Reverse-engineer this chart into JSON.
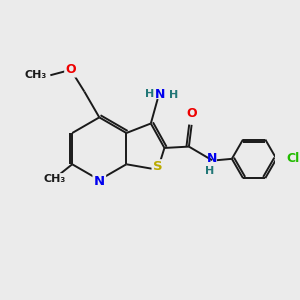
{
  "background_color": "#ebebeb",
  "bond_color": "#1a1a1a",
  "atom_colors": {
    "N": "#0000ee",
    "O": "#ee0000",
    "S": "#bbaa00",
    "Cl": "#22bb00",
    "H": "#227777",
    "C": "#1a1a1a"
  },
  "lw": 1.4,
  "fs": 8.5
}
